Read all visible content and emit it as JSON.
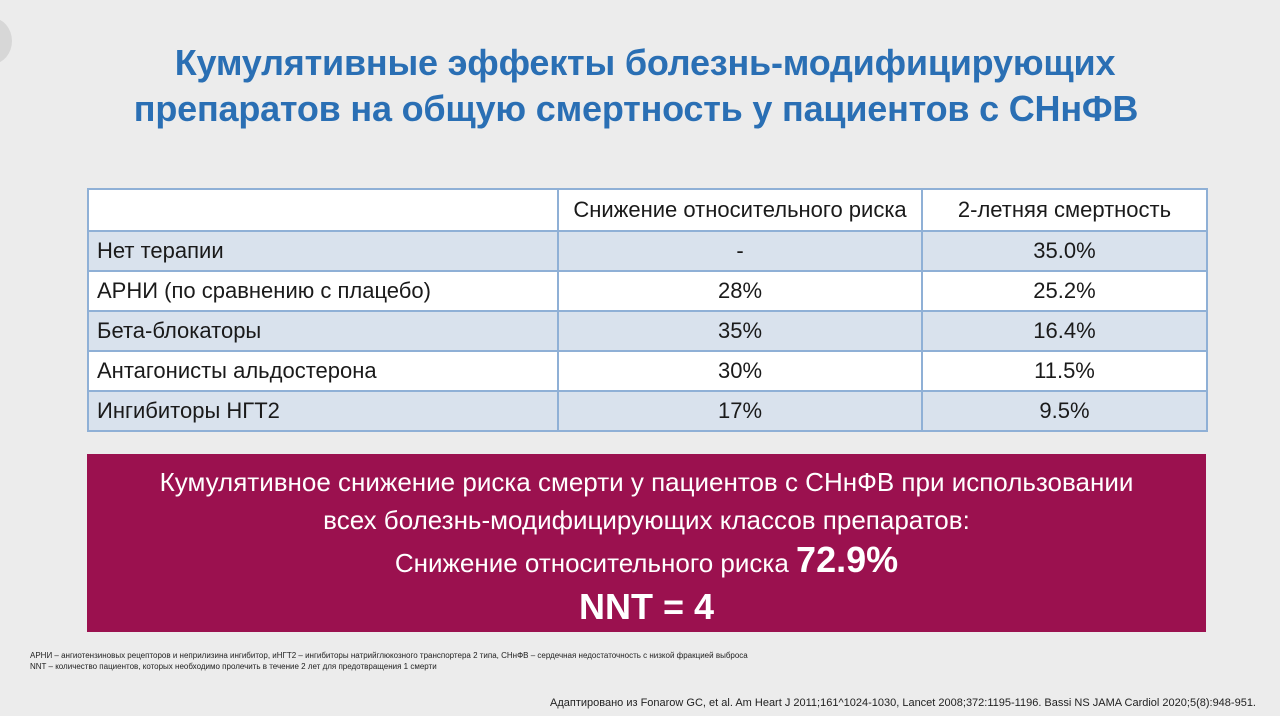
{
  "title": {
    "line1": "Кумулятивные эффекты болезнь-модифицирующих",
    "line2": "препаратов на общую смертность у пациентов с СНнФВ"
  },
  "table": {
    "headers": [
      "",
      "Снижение относительного риска",
      "2-летняя смертность"
    ],
    "rows": [
      {
        "name": "Нет терапии",
        "rrr": "-",
        "mortality": "35.0%"
      },
      {
        "name": "АРНИ (по сравнению с плацебо)",
        "rrr": "28%",
        "mortality": "25.2%"
      },
      {
        "name": "Бета-блокаторы",
        "rrr": "35%",
        "mortality": "16.4%"
      },
      {
        "name": "Антагонисты альдостерона",
        "rrr": "30%",
        "mortality": "11.5%"
      },
      {
        "name": "Ингибиторы НГТ2",
        "rrr": "17%",
        "mortality": "9.5%"
      }
    ]
  },
  "summary": {
    "line1": "Кумулятивное снижение риска смерти у пациентов с СНнФВ при использовании",
    "line2": "всех болезнь-модифицирующих классов препаратов:",
    "rr_label": "Снижение относительного риска",
    "rr_value": "72.9%",
    "nnt": "NNT = 4"
  },
  "footnotes": {
    "line1": "АРНИ – ангиотензиновых рецепторов и неприлизина ингибитор, иНГТ2 – ингибиторы натрийглюкозного транспортера 2 типа, СНнФВ – сердечная недостаточность с низкой фракцией выброса",
    "line2": "NNT – количество пациентов, которых необходимо пролечить в течение 2 лет для предотвращения 1 смерти"
  },
  "source": "Адаптировано из Fonarow GC, et al. Am Heart J 2011;161^1024-1030, Lancet 2008;372:1195-1196. Bassi NS JAMA Cardiol 2020;5(8):948-951.",
  "colors": {
    "title": "#2a6fb4",
    "table_border": "#8fb0d6",
    "row_shade": "#d9e2ed",
    "summary_bg": "#9b114f"
  }
}
